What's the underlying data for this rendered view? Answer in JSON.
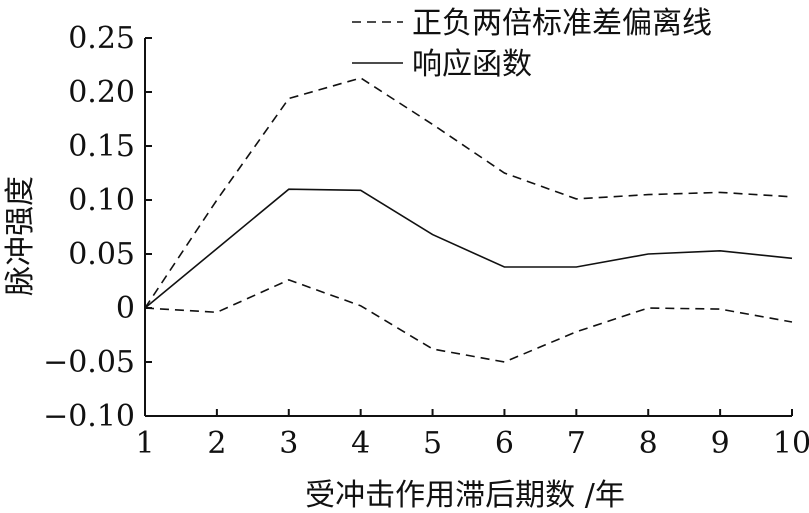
{
  "chart_data": {
    "type": "line",
    "xlabel": "受冲击作用滞后期数 /年",
    "ylabel": "脉冲强度",
    "xlim": [
      1,
      10
    ],
    "ylim": [
      -0.1,
      0.25
    ],
    "x_ticks": [
      "1",
      "2",
      "3",
      "4",
      "5",
      "6",
      "7",
      "8",
      "9",
      "10"
    ],
    "y_ticks": [
      "0.25",
      "0.20",
      "0.15",
      "0.10",
      "0.05",
      "0",
      "−0.05",
      "−0.10"
    ],
    "legend_position": "top-right",
    "grid": false,
    "x": [
      1,
      2,
      3,
      4,
      5,
      6,
      7,
      8,
      9,
      10
    ],
    "series": [
      {
        "name": "正负两倍标准差偏离线",
        "style": "dashed",
        "values": [
          0,
          0.1,
          0.194,
          0.213,
          0.17,
          0.125,
          0.101,
          0.105,
          0.107,
          0.103
        ]
      },
      {
        "name": "正负两倍标准差偏离线",
        "style": "dashed",
        "show_in_legend": false,
        "values": [
          0,
          -0.004,
          0.026,
          0.002,
          -0.038,
          -0.05,
          -0.022,
          0.0,
          -0.001,
          -0.013
        ]
      },
      {
        "name": "响应函数",
        "style": "solid",
        "values": [
          0,
          0.055,
          0.11,
          0.109,
          0.068,
          0.038,
          0.038,
          0.05,
          0.053,
          0.046
        ]
      }
    ]
  }
}
